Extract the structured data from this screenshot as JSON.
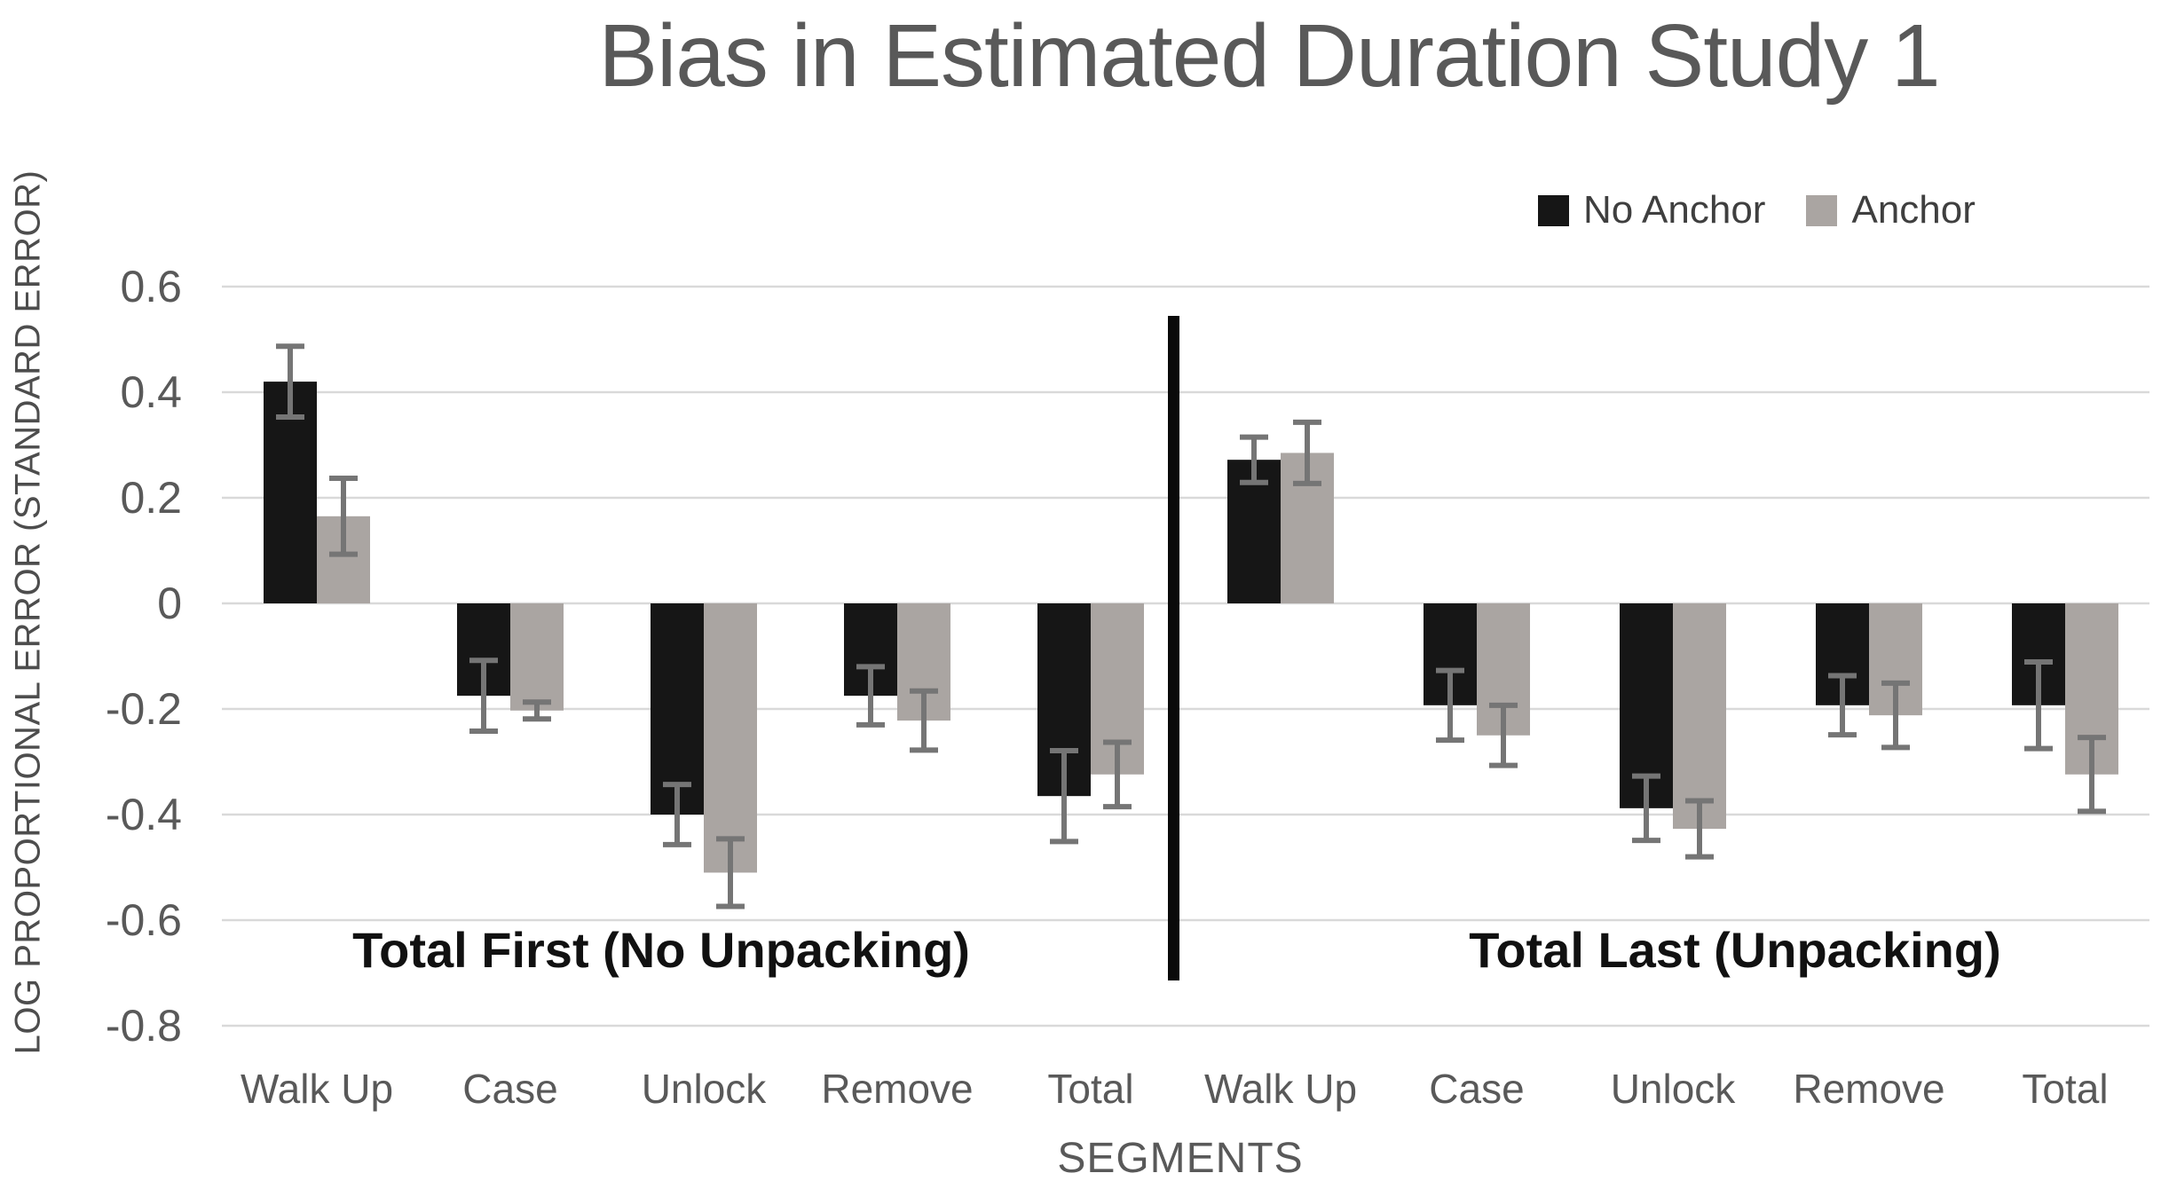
{
  "chart": {
    "title": "Bias in Estimated Duration Study 1",
    "y_axis_title": "LOG PROPORTIONAL ERROR (STANDARD ERROR)",
    "x_axis_title": "SEGMENTS",
    "legend": [
      "No Anchor",
      "Anchor"
    ]
  },
  "colors": {
    "no_anchor": "#161616",
    "anchor": "#aaa5a2",
    "error_bar": "#757575",
    "gridline": "#d9d9d9",
    "divider": "#0a0a0a",
    "title_text": "#595959",
    "axis_text": "#595959",
    "group_label_text": "#111111"
  },
  "chart_data": {
    "type": "bar",
    "title": "Bias in Estimated Duration Study 1",
    "xlabel": "SEGMENTS",
    "ylabel": "LOG PROPORTIONAL ERROR (STANDARD ERROR)",
    "ylim": [
      -0.8,
      0.7
    ],
    "yticks": [
      0.6,
      0.4,
      0.2,
      0,
      -0.2,
      -0.4,
      -0.6,
      -0.8
    ],
    "grid": true,
    "legend_position": "top-right",
    "error_bars": true,
    "series_names": [
      "No Anchor",
      "Anchor"
    ],
    "groups": [
      {
        "label": "Total First (No Unpacking)",
        "categories": [
          "Walk Up",
          "Case",
          "Unlock",
          "Remove",
          "Total"
        ],
        "series": [
          {
            "name": "No Anchor",
            "values": [
              0.42,
              -0.175,
              -0.4,
              -0.175,
              -0.365
            ],
            "errors": [
              0.067,
              0.067,
              0.057,
              0.055,
              0.086
            ]
          },
          {
            "name": "Anchor",
            "values": [
              0.165,
              -0.203,
              -0.51,
              -0.222,
              -0.324
            ],
            "errors": [
              0.072,
              0.016,
              0.064,
              0.056,
              0.061
            ]
          }
        ]
      },
      {
        "label": "Total Last (Unpacking)",
        "categories": [
          "Walk Up",
          "Case",
          "Unlock",
          "Remove",
          "Total"
        ],
        "series": [
          {
            "name": "No Anchor",
            "values": [
              0.272,
              -0.193,
              -0.388,
              -0.193,
              -0.193
            ],
            "errors": [
              0.043,
              0.066,
              0.061,
              0.056,
              0.082
            ]
          },
          {
            "name": "Anchor",
            "values": [
              0.285,
              -0.25,
              -0.427,
              -0.212,
              -0.324
            ],
            "errors": [
              0.058,
              0.057,
              0.053,
              0.061,
              0.07
            ]
          }
        ]
      }
    ]
  }
}
